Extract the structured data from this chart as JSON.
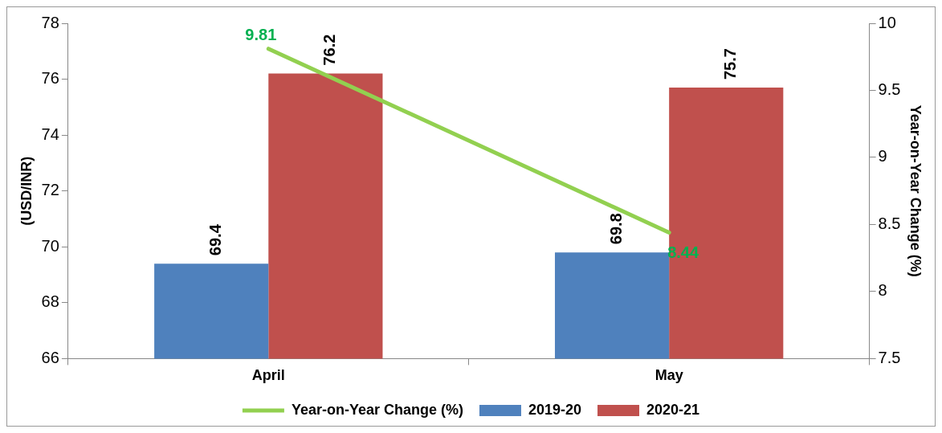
{
  "chart_data": {
    "type": "bar",
    "categories": [
      "April",
      "May"
    ],
    "series": [
      {
        "name": "2019-20",
        "color": "#4f81bd",
        "values": [
          69.4,
          69.8
        ]
      },
      {
        "name": "2020-21",
        "color": "#c0504d",
        "values": [
          76.2,
          75.7
        ]
      },
      {
        "name": "Year-on-Year Change (%)",
        "type": "line",
        "axis": "y2",
        "color": "#92d050",
        "values": [
          9.81,
          8.44
        ]
      }
    ],
    "ylabel": "(USD/INR)",
    "y2label": "Year-on-Year Change (%)",
    "ylim": [
      66,
      78
    ],
    "yticks": [
      66,
      68,
      70,
      72,
      74,
      76,
      78
    ],
    "y2lim": [
      7.5,
      10
    ],
    "y2ticks": [
      7.5,
      8,
      8.5,
      9,
      9.5,
      10
    ],
    "marker": "none",
    "data_labels": true,
    "grid": false,
    "legend": "bottom"
  }
}
